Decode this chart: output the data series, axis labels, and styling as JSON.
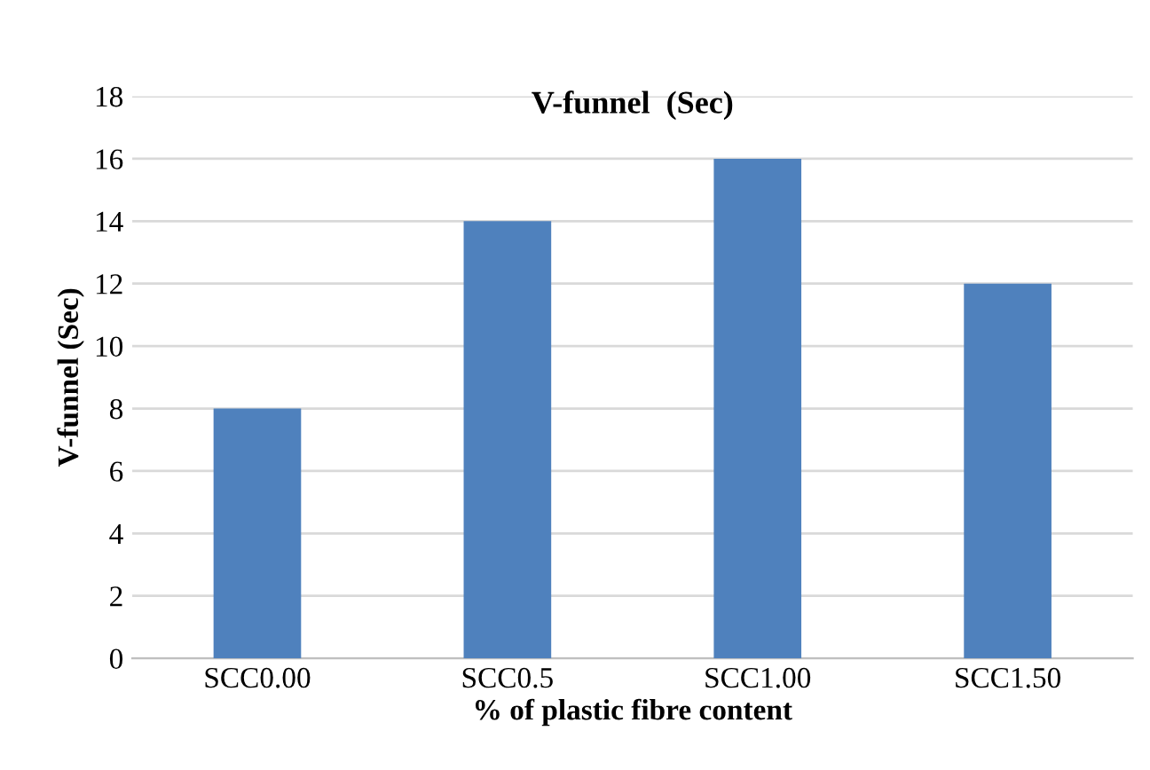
{
  "chart_data": {
    "type": "bar",
    "title": "V-funnel  (Sec)",
    "xlabel": "% of plastic fibre content",
    "ylabel": "V-funnel (Sec)",
    "categories": [
      "SCC0.00",
      "SCC0.5",
      "SCC1.00",
      "SCC1.50"
    ],
    "values": [
      8,
      14,
      16,
      12
    ],
    "color": "#4f81bd",
    "ylim": [
      0,
      18
    ],
    "yticks": [
      0,
      2,
      4,
      6,
      8,
      10,
      12,
      14,
      16,
      18
    ],
    "grid": "y"
  }
}
